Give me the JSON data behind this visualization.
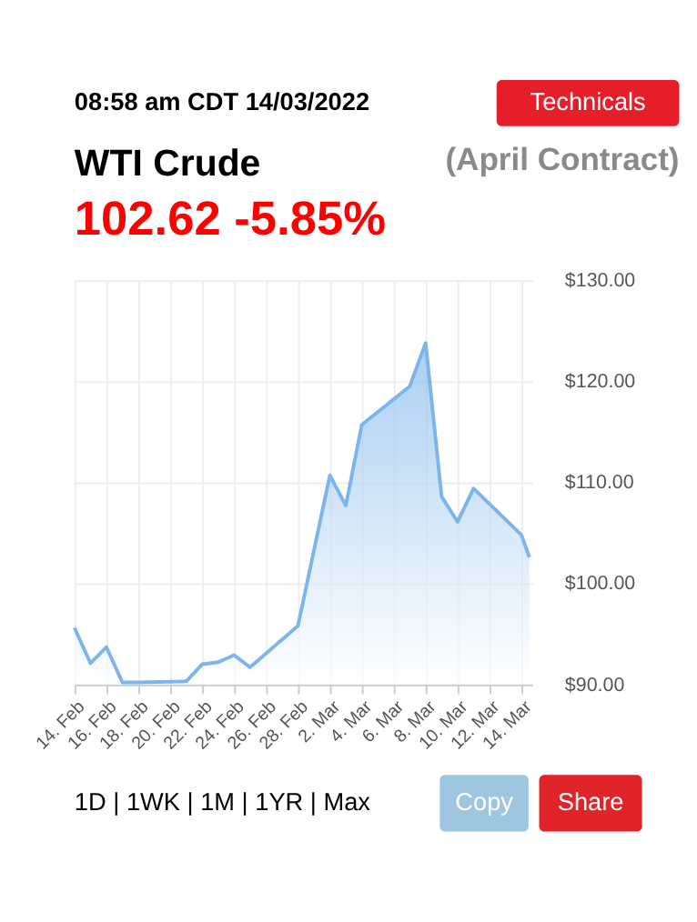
{
  "chart_data": {
    "type": "area",
    "title": "WTI Crude",
    "subtitle": "(April Contract)",
    "annotations": [
      "08:58 am CDT 14/03/2022",
      "Technicals",
      "102.62 -5.85%",
      "1D | 1WK | 1M | 1YR | Max",
      "Copy",
      "Share"
    ],
    "x": [
      "2022-02-14",
      "2022-02-15",
      "2022-02-16",
      "2022-02-17",
      "2022-02-18",
      "2022-02-21",
      "2022-02-22",
      "2022-02-23",
      "2022-02-24",
      "2022-02-25",
      "2022-02-28",
      "2022-03-02",
      "2022-03-03",
      "2022-03-04",
      "2022-03-07",
      "2022-03-08",
      "2022-03-09",
      "2022-03-10",
      "2022-03-11",
      "2022-03-14",
      "2022-03-14T12:00"
    ],
    "series": [
      {
        "color": "#7cb5ec",
        "values": [
          95.6,
          92.1,
          93.7,
          90.2,
          90.2,
          90.3,
          92.0,
          92.2,
          92.9,
          91.7,
          95.8,
          110.7,
          107.7,
          115.7,
          119.5,
          123.8,
          108.6,
          106.1,
          109.4,
          104.8,
          102.6
        ]
      }
    ],
    "xlim": [
      "2022-02-14",
      "2022-03-14T16:00"
    ],
    "xticks": [
      {
        "value": "2022-02-14",
        "label": "14. Feb"
      },
      {
        "value": "2022-02-16",
        "label": "16. Feb"
      },
      {
        "value": "2022-02-18",
        "label": "18. Feb"
      },
      {
        "value": "2022-02-20",
        "label": "20. Feb"
      },
      {
        "value": "2022-02-22",
        "label": "22. Feb"
      },
      {
        "value": "2022-02-24",
        "label": "24. Feb"
      },
      {
        "value": "2022-02-26",
        "label": "26. Feb"
      },
      {
        "value": "2022-02-28",
        "label": "28. Feb"
      },
      {
        "value": "2022-03-02",
        "label": "2. Mar"
      },
      {
        "value": "2022-03-04",
        "label": "4. Mar"
      },
      {
        "value": "2022-03-06",
        "label": "6. Mar"
      },
      {
        "value": "2022-03-08",
        "label": "8. Mar"
      },
      {
        "value": "2022-03-10",
        "label": "10. Mar"
      },
      {
        "value": "2022-03-12",
        "label": "12. Mar"
      },
      {
        "value": "2022-03-14",
        "label": "14. Mar"
      }
    ],
    "ylim": [
      90,
      130
    ],
    "yticks": [
      {
        "value": 90,
        "label": "$90.00"
      },
      {
        "value": 100,
        "label": "$100.00"
      },
      {
        "value": 110,
        "label": "$110.00"
      },
      {
        "value": 120,
        "label": "$120.00"
      },
      {
        "value": 130,
        "label": "$130.00"
      }
    ],
    "grid": true,
    "marker": "none",
    "line_style": "solid"
  }
}
